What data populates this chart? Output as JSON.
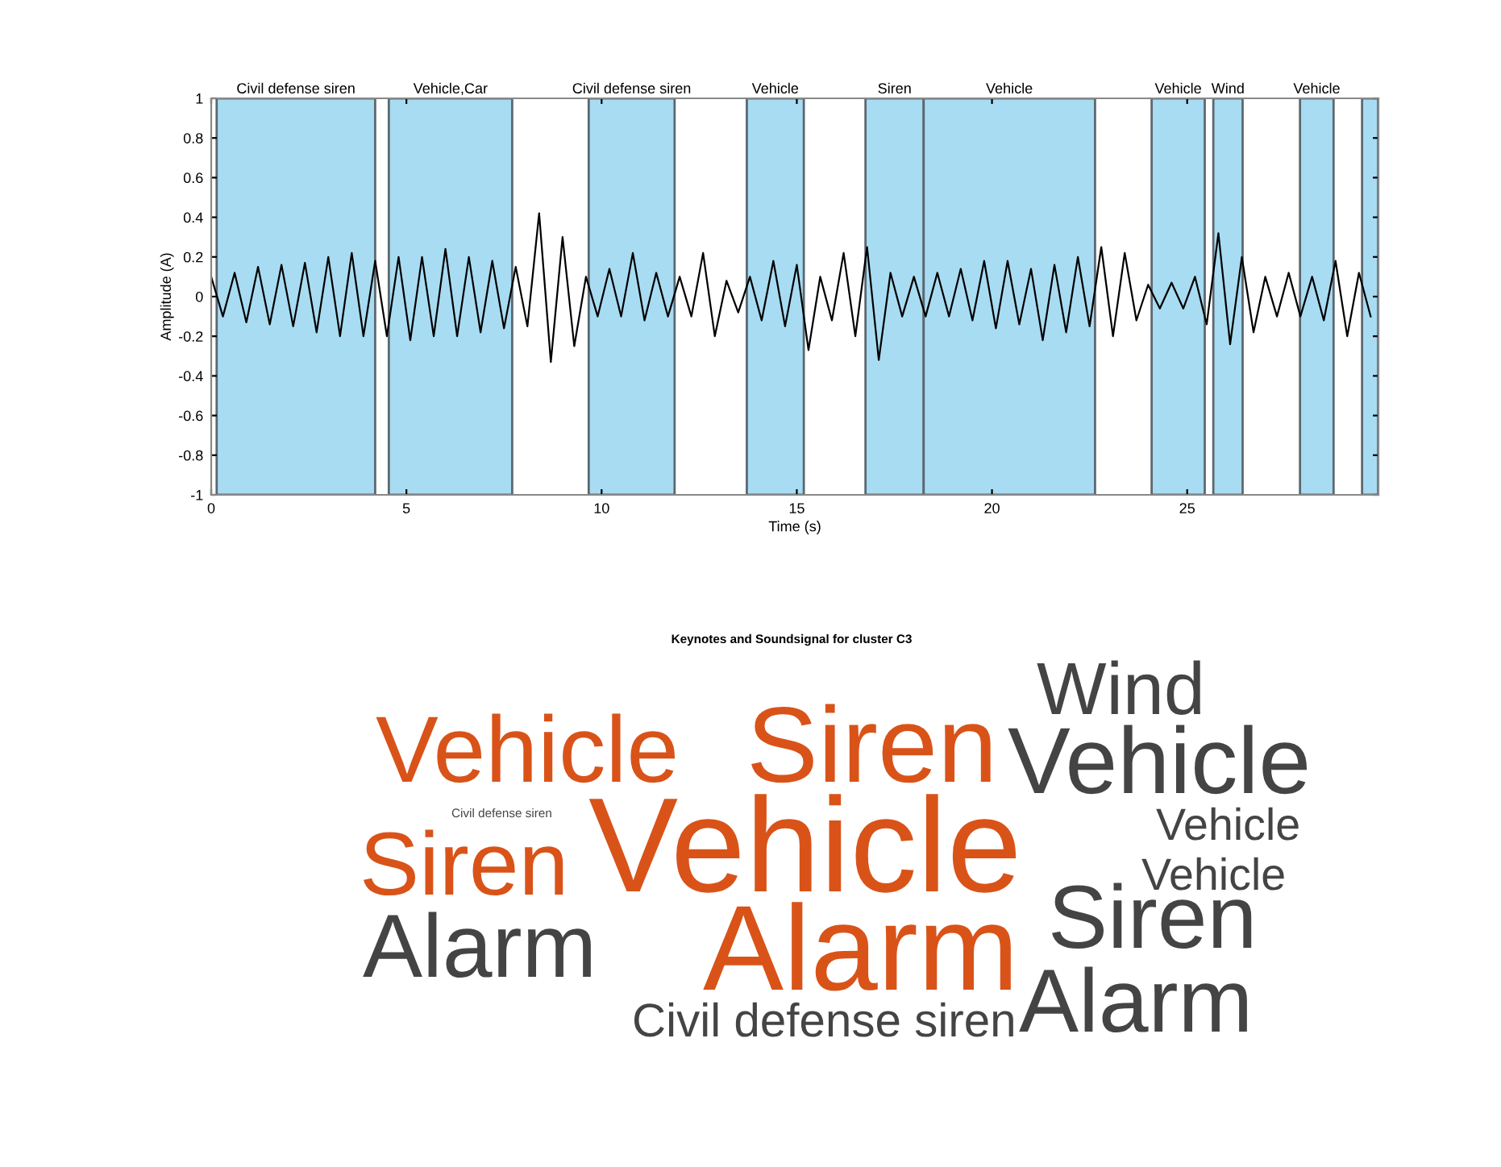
{
  "chart_data": [
    {
      "type": "line",
      "xlabel": "Time (s)",
      "ylabel": "Amplitude (A)",
      "xlim": [
        0,
        29.9
      ],
      "ylim": [
        -1,
        1
      ],
      "xticks": [
        0,
        5,
        10,
        15,
        20,
        25
      ],
      "yticks": [
        -1,
        -0.8,
        -0.6,
        -0.4,
        -0.2,
        0,
        0.2,
        0.4,
        0.6,
        0.8,
        1
      ],
      "grid": false,
      "marker": "none",
      "line_style": "solid",
      "series": [
        {
          "color": "#000000",
          "x": [
            0,
            0.3,
            0.6,
            0.9,
            1.2,
            1.5,
            1.8,
            2.1,
            2.4,
            2.7,
            3,
            3.3,
            3.6,
            3.9,
            4.2,
            4.5,
            4.8,
            5.1,
            5.4,
            5.7,
            6,
            6.3,
            6.6,
            6.9,
            7.2,
            7.5,
            7.8,
            8.1,
            8.4,
            8.7,
            9,
            9.3,
            9.6,
            9.9,
            10.2,
            10.5,
            10.8,
            11.1,
            11.4,
            11.7,
            12,
            12.3,
            12.6,
            12.9,
            13.2,
            13.5,
            13.8,
            14.1,
            14.4,
            14.7,
            15,
            15.3,
            15.6,
            15.9,
            16.2,
            16.5,
            16.8,
            17.1,
            17.4,
            17.7,
            18,
            18.3,
            18.6,
            18.9,
            19.2,
            19.5,
            19.8,
            20.1,
            20.4,
            20.7,
            21,
            21.3,
            21.6,
            21.9,
            22.2,
            22.5,
            22.8,
            23.1,
            23.4,
            23.7,
            24,
            24.3,
            24.6,
            24.9,
            25.2,
            25.5,
            25.8,
            26.1,
            26.4,
            26.7,
            27,
            27.3,
            27.6,
            27.9,
            28.2,
            28.5,
            28.8,
            29.1,
            29.4,
            29.7
          ],
          "values": [
            0.1,
            -0.1,
            0.12,
            -0.13,
            0.15,
            -0.14,
            0.16,
            -0.15,
            0.17,
            -0.18,
            0.2,
            -0.2,
            0.22,
            -0.2,
            0.18,
            -0.2,
            0.2,
            -0.22,
            0.2,
            -0.2,
            0.24,
            -0.2,
            0.2,
            -0.18,
            0.18,
            -0.16,
            0.15,
            -0.15,
            0.42,
            -0.33,
            0.3,
            -0.25,
            0.1,
            -0.1,
            0.14,
            -0.1,
            0.22,
            -0.12,
            0.12,
            -0.1,
            0.1,
            -0.1,
            0.22,
            -0.2,
            0.08,
            -0.08,
            0.1,
            -0.12,
            0.18,
            -0.15,
            0.16,
            -0.27,
            0.1,
            -0.12,
            0.22,
            -0.2,
            0.25,
            -0.32,
            0.12,
            -0.1,
            0.1,
            -0.1,
            0.12,
            -0.1,
            0.14,
            -0.12,
            0.18,
            -0.16,
            0.18,
            -0.14,
            0.14,
            -0.22,
            0.16,
            -0.18,
            0.2,
            -0.15,
            0.25,
            -0.2,
            0.22,
            -0.12,
            0.06,
            -0.06,
            0.07,
            -0.06,
            0.1,
            -0.14,
            0.32,
            -0.24,
            0.2,
            -0.18,
            0.1,
            -0.1,
            0.12,
            -0.1,
            0.1,
            -0.12,
            0.18,
            -0.2,
            0.12,
            -0.1
          ]
        }
      ],
      "bands": [
        {
          "axis": "x",
          "from": 0.14,
          "to": 4.2,
          "label": "Civil defense siren",
          "color": "#a8dcf2"
        },
        {
          "axis": "x",
          "from": 4.55,
          "to": 7.71,
          "label": "Vehicle,Car",
          "color": "#a8dcf2"
        },
        {
          "axis": "x",
          "from": 9.67,
          "to": 11.87,
          "label": "Civil defense siren",
          "color": "#a8dcf2"
        },
        {
          "axis": "x",
          "from": 13.72,
          "to": 15.18,
          "label": "Vehicle",
          "color": "#a8dcf2"
        },
        {
          "axis": "x",
          "from": 16.76,
          "to": 18.25,
          "label": "Siren",
          "color": "#a8dcf2"
        },
        {
          "axis": "x",
          "from": 18.25,
          "to": 22.64,
          "label": "Vehicle",
          "color": "#a8dcf2"
        },
        {
          "axis": "x",
          "from": 24.09,
          "to": 25.45,
          "label": "Vehicle",
          "color": "#a8dcf2"
        },
        {
          "axis": "x",
          "from": 25.67,
          "to": 26.42,
          "label": "Wind",
          "color": "#a8dcf2"
        },
        {
          "axis": "x",
          "from": 27.89,
          "to": 28.75,
          "label": "Vehicle",
          "color": "#a8dcf2"
        },
        {
          "axis": "x",
          "from": 29.48,
          "to": 29.89,
          "label": null,
          "color": "#a8dcf2"
        }
      ]
    },
    {
      "type": "other",
      "title": "Keynotes and Soundsignal for cluster C3",
      "categories": [
        "Wind",
        "Vehicle",
        "Siren",
        "Vehicle",
        "Civil defense siren",
        "Siren",
        "Vehicle",
        "Vehicle",
        "Vehicle",
        "Siren",
        "Alarm",
        "Alarm",
        "Alarm",
        "Civil defense siren"
      ],
      "colors": [
        "#444444",
        "#d95319",
        "#d95319",
        "#444444",
        "#444444",
        "#d95319",
        "#d95319",
        "#444444",
        "#444444",
        "#444444",
        "#444444",
        "#d95319",
        "#444444",
        "#444444"
      ]
    }
  ]
}
